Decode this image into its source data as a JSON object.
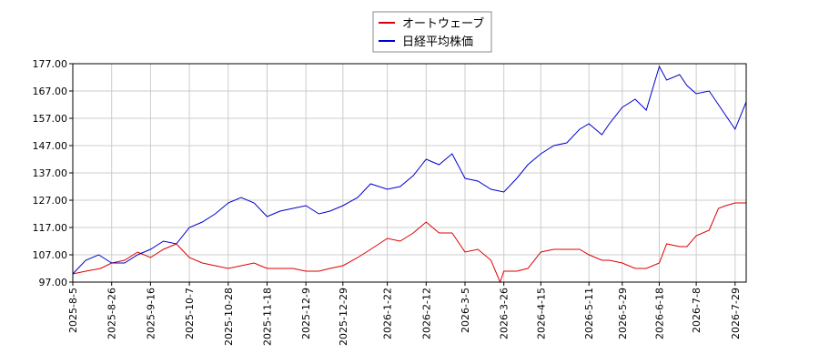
{
  "chart_data": {
    "type": "line",
    "y_ticks": [
      97.0,
      107.0,
      117.0,
      127.0,
      137.0,
      147.0,
      157.0,
      167.0,
      177.0
    ],
    "x_ticks": [
      "2025-8-5",
      "2025-8-26",
      "2025-9-16",
      "2025-10-7",
      "2025-10-28",
      "2025-11-18",
      "2025-12-9",
      "2025-12-29",
      "2026-1-22",
      "2026-2-12",
      "2026-3-5",
      "2026-3-26",
      "2026-4-15",
      "2026-5-11",
      "2026-5-29",
      "2026-6-18",
      "2026-7-8",
      "2026-7-29"
    ],
    "x_range": [
      "2025-8-5",
      "2026-8-4"
    ],
    "ylim": [
      97.0,
      177.0
    ],
    "grid": true,
    "legend_position": "top-center",
    "series": [
      {
        "name": "オートウェーブ",
        "color": "#dd0000",
        "points": [
          [
            "2025-8-5",
            100
          ],
          [
            "2025-8-12",
            101
          ],
          [
            "2025-8-20",
            102
          ],
          [
            "2025-8-26",
            104
          ],
          [
            "2025-9-2",
            105
          ],
          [
            "2025-9-9",
            108
          ],
          [
            "2025-9-16",
            106
          ],
          [
            "2025-9-23",
            109
          ],
          [
            "2025-9-30",
            111
          ],
          [
            "2025-10-7",
            106
          ],
          [
            "2025-10-14",
            104
          ],
          [
            "2025-10-21",
            103
          ],
          [
            "2025-10-28",
            102
          ],
          [
            "2025-11-4",
            103
          ],
          [
            "2025-11-11",
            104
          ],
          [
            "2025-11-18",
            102
          ],
          [
            "2025-11-25",
            102
          ],
          [
            "2025-12-2",
            102
          ],
          [
            "2025-12-9",
            101
          ],
          [
            "2025-12-16",
            101
          ],
          [
            "2025-12-22",
            102
          ],
          [
            "2025-12-29",
            103
          ],
          [
            "2026-1-6",
            106
          ],
          [
            "2026-1-13",
            109
          ],
          [
            "2026-1-22",
            113
          ],
          [
            "2026-1-29",
            112
          ],
          [
            "2026-2-5",
            115
          ],
          [
            "2026-2-12",
            119
          ],
          [
            "2026-2-19",
            115
          ],
          [
            "2026-2-26",
            115
          ],
          [
            "2026-3-5",
            108
          ],
          [
            "2026-3-12",
            109
          ],
          [
            "2026-3-19",
            105
          ],
          [
            "2026-3-24",
            97
          ],
          [
            "2026-3-26",
            101
          ],
          [
            "2026-4-2",
            101
          ],
          [
            "2026-4-8",
            102
          ],
          [
            "2026-4-15",
            108
          ],
          [
            "2026-4-22",
            109
          ],
          [
            "2026-4-29",
            109
          ],
          [
            "2026-5-6",
            109
          ],
          [
            "2026-5-11",
            107
          ],
          [
            "2026-5-18",
            105
          ],
          [
            "2026-5-22",
            105
          ],
          [
            "2026-5-29",
            104
          ],
          [
            "2026-6-5",
            102
          ],
          [
            "2026-6-11",
            102
          ],
          [
            "2026-6-18",
            104
          ],
          [
            "2026-6-22",
            111
          ],
          [
            "2026-6-29",
            110
          ],
          [
            "2026-7-3",
            110
          ],
          [
            "2026-7-8",
            114
          ],
          [
            "2026-7-15",
            116
          ],
          [
            "2026-7-20",
            124
          ],
          [
            "2026-7-24",
            125
          ],
          [
            "2026-7-29",
            126
          ],
          [
            "2026-8-4",
            126
          ]
        ]
      },
      {
        "name": "日経平均株価",
        "color": "#0000cc",
        "points": [
          [
            "2025-8-5",
            100
          ],
          [
            "2025-8-12",
            105
          ],
          [
            "2025-8-19",
            107
          ],
          [
            "2025-8-26",
            104
          ],
          [
            "2025-9-2",
            104
          ],
          [
            "2025-9-9",
            107
          ],
          [
            "2025-9-16",
            109
          ],
          [
            "2025-9-23",
            112
          ],
          [
            "2025-9-30",
            111
          ],
          [
            "2025-10-7",
            117
          ],
          [
            "2025-10-14",
            119
          ],
          [
            "2025-10-21",
            122
          ],
          [
            "2025-10-28",
            126
          ],
          [
            "2025-11-4",
            128
          ],
          [
            "2025-11-11",
            126
          ],
          [
            "2025-11-18",
            121
          ],
          [
            "2025-11-25",
            123
          ],
          [
            "2025-12-2",
            124
          ],
          [
            "2025-12-9",
            125
          ],
          [
            "2025-12-16",
            122
          ],
          [
            "2025-12-22",
            123
          ],
          [
            "2025-12-29",
            125
          ],
          [
            "2026-1-6",
            128
          ],
          [
            "2026-1-13",
            133
          ],
          [
            "2026-1-22",
            131
          ],
          [
            "2026-1-29",
            132
          ],
          [
            "2026-2-5",
            136
          ],
          [
            "2026-2-12",
            142
          ],
          [
            "2026-2-19",
            140
          ],
          [
            "2026-2-26",
            144
          ],
          [
            "2026-3-5",
            135
          ],
          [
            "2026-3-12",
            134
          ],
          [
            "2026-3-19",
            131
          ],
          [
            "2026-3-26",
            130
          ],
          [
            "2026-4-2",
            135
          ],
          [
            "2026-4-8",
            140
          ],
          [
            "2026-4-15",
            144
          ],
          [
            "2026-4-22",
            147
          ],
          [
            "2026-4-29",
            148
          ],
          [
            "2026-5-6",
            153
          ],
          [
            "2026-5-11",
            155
          ],
          [
            "2026-5-18",
            151
          ],
          [
            "2026-5-22",
            155
          ],
          [
            "2026-5-29",
            161
          ],
          [
            "2026-6-5",
            164
          ],
          [
            "2026-6-11",
            160
          ],
          [
            "2026-6-18",
            176
          ],
          [
            "2026-6-22",
            171
          ],
          [
            "2026-6-29",
            173
          ],
          [
            "2026-7-3",
            169
          ],
          [
            "2026-7-8",
            166
          ],
          [
            "2026-7-15",
            167
          ],
          [
            "2026-7-20",
            162
          ],
          [
            "2026-7-24",
            158
          ],
          [
            "2026-7-29",
            153
          ],
          [
            "2026-8-4",
            163
          ]
        ]
      }
    ]
  }
}
